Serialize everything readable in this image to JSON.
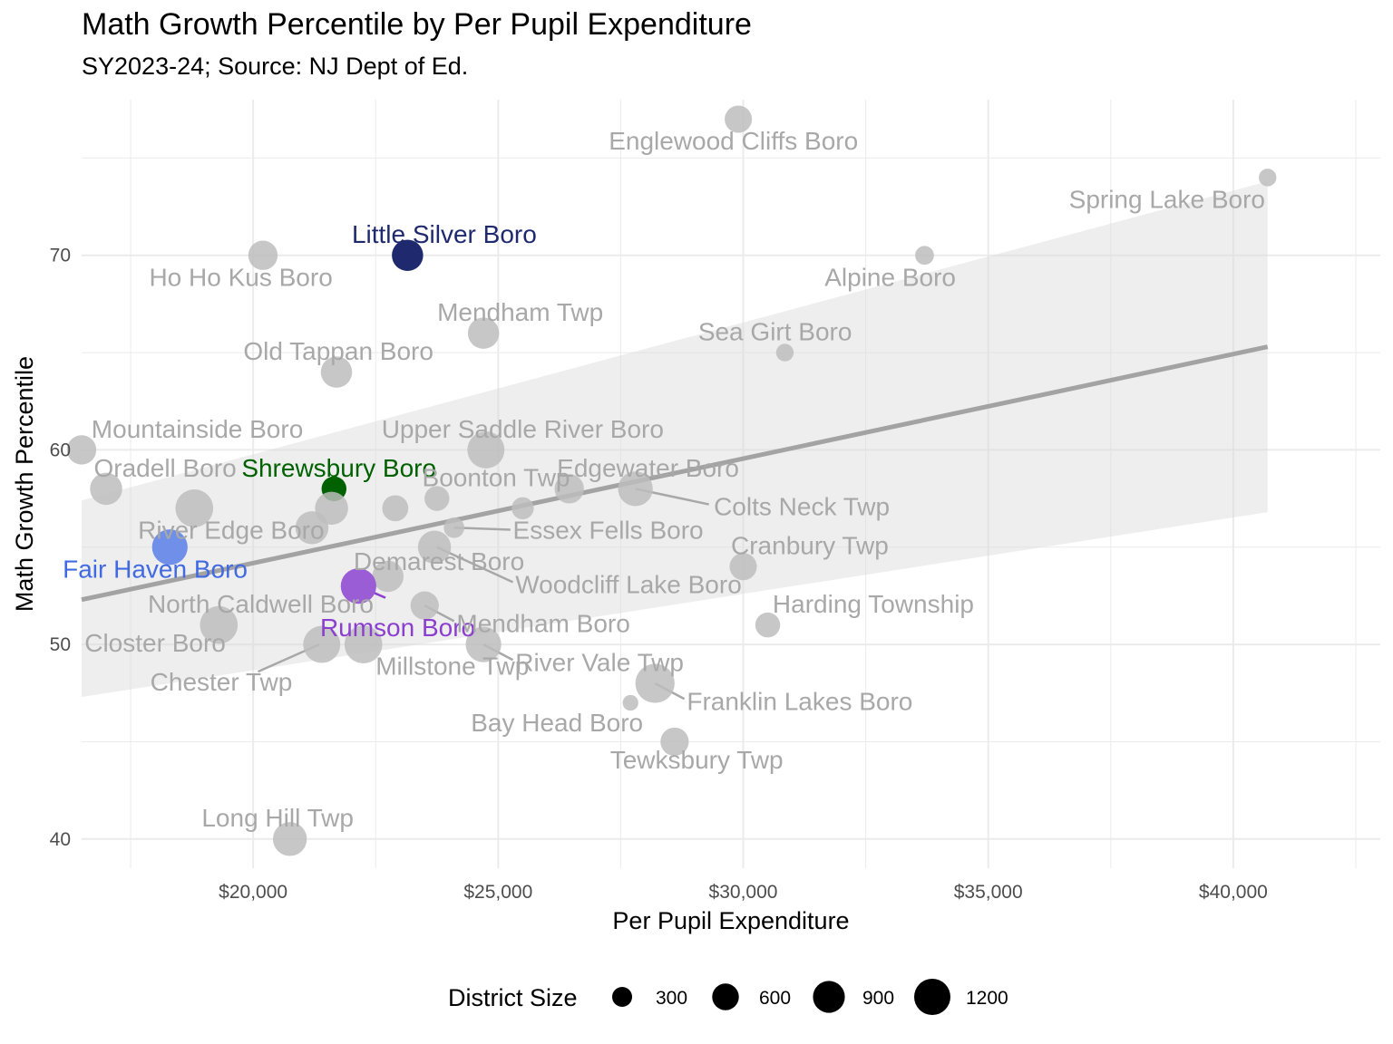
{
  "chart_data": {
    "type": "scatter",
    "title": "Math Growth Percentile by Per Pupil Expenditure",
    "subtitle": "SY2023-24; Source: NJ Dept of Ed.",
    "xlabel": "Per Pupil Expenditure",
    "ylabel": "Math Growth Percentile",
    "xlim": [
      16500,
      43000
    ],
    "ylim": [
      38.5,
      78
    ],
    "x_ticks": [
      20000,
      25000,
      30000,
      35000,
      40000
    ],
    "x_tick_labels": [
      "$20,000",
      "$25,000",
      "$30,000",
      "$35,000",
      "$40,000"
    ],
    "y_ticks": [
      40,
      50,
      60,
      70
    ],
    "y_tick_labels": [
      "40",
      "50",
      "60",
      "70"
    ],
    "grid": true,
    "legend": {
      "title": "District Size",
      "position": "bottom",
      "sizes": [
        300,
        600,
        900,
        1200
      ],
      "labels": [
        "300",
        "600",
        "900",
        "1200"
      ]
    },
    "trend": {
      "type": "linear",
      "x": [
        16500,
        40700
      ],
      "y": [
        52.3,
        65.3
      ],
      "ci_low": [
        47.3,
        56.8
      ],
      "ci_high": [
        57.4,
        73.8
      ]
    },
    "colors": {
      "default": "#a8a8a8",
      "default_fill": "#bdbdbd",
      "Little Silver Boro": "#1f2a6e",
      "Shrewsbury Boro": "#006100",
      "Fair Haven Boro": "#6f8fe8",
      "Rumson Boro": "#9b5dd6",
      "Fair Haven Boro_text": "#4169e1",
      "Rumson Boro_text": "#8a3fcf"
    },
    "points": [
      {
        "x": 29900,
        "y": 77,
        "size": 450,
        "label": "Englewood Cliffs Boro"
      },
      {
        "x": 40700,
        "y": 74,
        "size": 120,
        "label": "Spring Lake Boro"
      },
      {
        "x": 20200,
        "y": 70,
        "size": 550,
        "label": "Ho Ho Kus Boro"
      },
      {
        "x": 23150,
        "y": 70,
        "size": 650,
        "label": "Little Silver Boro",
        "highlight": true
      },
      {
        "x": 33700,
        "y": 70,
        "size": 150,
        "label": "Alpine Boro"
      },
      {
        "x": 24700,
        "y": 66,
        "size": 650,
        "label": "Mendham Twp"
      },
      {
        "x": 30850,
        "y": 65,
        "size": 120,
        "label": "Sea Girt Boro"
      },
      {
        "x": 21700,
        "y": 64,
        "size": 650,
        "label": "Old Tappan Boro"
      },
      {
        "x": 16500,
        "y": 60,
        "size": 550,
        "label": "Mountainside Boro"
      },
      {
        "x": 24750,
        "y": 60,
        "size": 1000,
        "label": "Upper Saddle River Boro"
      },
      {
        "x": 17000,
        "y": 58,
        "size": 700,
        "label": "Oradell Boro"
      },
      {
        "x": 21650,
        "y": 58,
        "size": 350,
        "label": "Shrewsbury Boro",
        "highlight": true
      },
      {
        "x": 23750,
        "y": 57.5,
        "size": 350,
        "label": "Boonton Twp"
      },
      {
        "x": 26450,
        "y": 58,
        "size": 550,
        "label": "Edgewater Boro"
      },
      {
        "x": 27800,
        "y": 58,
        "size": 850,
        "label": "Colts Neck Twp"
      },
      {
        "x": 18800,
        "y": 57,
        "size": 1050,
        "label": ""
      },
      {
        "x": 21600,
        "y": 57,
        "size": 750,
        "label": ""
      },
      {
        "x": 22900,
        "y": 57,
        "size": 400,
        "label": ""
      },
      {
        "x": 25500,
        "y": 57,
        "size": 250,
        "label": ""
      },
      {
        "x": 21200,
        "y": 56,
        "size": 750,
        "label": "River Edge Boro"
      },
      {
        "x": 24100,
        "y": 56,
        "size": 200,
        "label": "Essex Fells Boro"
      },
      {
        "x": 18300,
        "y": 55,
        "size": 900,
        "label": "Fair Haven Boro",
        "highlight": true
      },
      {
        "x": 23700,
        "y": 55,
        "size": 750,
        "label": "Woodcliff Lake Boro"
      },
      {
        "x": 30000,
        "y": 54,
        "size": 450,
        "label": "Cranbury Twp"
      },
      {
        "x": 22750,
        "y": 53.5,
        "size": 650,
        "label": "Demarest Boro"
      },
      {
        "x": 22150,
        "y": 53,
        "size": 900,
        "label": "Rumson Boro",
        "highlight": true
      },
      {
        "x": 23500,
        "y": 52,
        "size": 500,
        "label": "Mendham Boro"
      },
      {
        "x": 30500,
        "y": 51,
        "size": 350,
        "label": "Harding Township"
      },
      {
        "x": 19300,
        "y": 51,
        "size": 1050,
        "label": "North Caldwell Boro"
      },
      {
        "x": 21400,
        "y": 50,
        "size": 1000,
        "label": "Chester Twp"
      },
      {
        "x": 22250,
        "y": 50,
        "size": 1050,
        "label": "Millstone Twp"
      },
      {
        "x": 24700,
        "y": 50,
        "size": 900,
        "label": "River Vale Twp"
      },
      {
        "x": 28200,
        "y": 48,
        "size": 1150,
        "label": "Franklin Lakes Boro"
      },
      {
        "x": 27700,
        "y": 47,
        "size": 80,
        "label": "Bay Head Boro"
      },
      {
        "x": 28600,
        "y": 45,
        "size": 500,
        "label": "Tewksbury Twp"
      },
      {
        "x": 20750,
        "y": 40,
        "size": 800,
        "label": "Long Hill Twp"
      }
    ],
    "labels": [
      {
        "text": "Englewood Cliffs Boro",
        "x": 29800,
        "y": 75.9,
        "anchor": "middle"
      },
      {
        "text": "Spring Lake Boro",
        "x": 40650,
        "y": 72.9,
        "anchor": "end"
      },
      {
        "text": "Ho Ho Kus Boro",
        "x": 19750,
        "y": 68.9,
        "anchor": "middle"
      },
      {
        "text": "Little Silver Boro",
        "x": 23900,
        "y": 71.1,
        "anchor": "middle",
        "point": "Little Silver Boro"
      },
      {
        "text": "Alpine Boro",
        "x": 33000,
        "y": 68.9,
        "anchor": "middle"
      },
      {
        "text": "Mendham Twp",
        "x": 25450,
        "y": 67.1,
        "anchor": "middle"
      },
      {
        "text": "Sea Girt Boro",
        "x": 30650,
        "y": 66.1,
        "anchor": "middle"
      },
      {
        "text": "Old Tappan Boro",
        "x": 19800,
        "y": 65.1,
        "anchor": "start"
      },
      {
        "text": "Mountainside Boro",
        "x": 16700,
        "y": 61.1,
        "anchor": "start"
      },
      {
        "text": "Upper Saddle River Boro",
        "x": 25500,
        "y": 61.1,
        "anchor": "middle"
      },
      {
        "text": "Oradell Boro",
        "x": 16750,
        "y": 59.1,
        "anchor": "start"
      },
      {
        "text": "Shrewsbury Boro",
        "x": 21750,
        "y": 59.1,
        "anchor": "middle",
        "point": "Shrewsbury Boro"
      },
      {
        "text": "Boonton Twp",
        "x": 23450,
        "y": 58.6,
        "anchor": "start"
      },
      {
        "text": "Edgewater Boro",
        "x": 26200,
        "y": 59.1,
        "anchor": "start"
      },
      {
        "text": "Colts Neck Twp",
        "x": 29400,
        "y": 57.1,
        "anchor": "start",
        "leader": [
          27800,
          58,
          29300,
          57.2
        ]
      },
      {
        "text": "River Edge Boro",
        "x": 17650,
        "y": 55.9,
        "anchor": "start"
      },
      {
        "text": "Essex Fells Boro",
        "x": 25300,
        "y": 55.9,
        "anchor": "start",
        "leader": [
          24100,
          56,
          25250,
          55.9
        ]
      },
      {
        "text": "Fair Haven Boro",
        "x": 18000,
        "y": 53.9,
        "anchor": "middle",
        "point": "Fair Haven Boro"
      },
      {
        "text": "Woodcliff Lake Boro",
        "x": 25350,
        "y": 53.1,
        "anchor": "start",
        "leader": [
          23750,
          55,
          25300,
          53.2
        ]
      },
      {
        "text": "Cranbury Twp",
        "x": 29750,
        "y": 55.1,
        "anchor": "start"
      },
      {
        "text": "Demarest Boro",
        "x": 22050,
        "y": 54.3,
        "anchor": "start"
      },
      {
        "text": "Rumson Boro",
        "x": 22950,
        "y": 50.9,
        "anchor": "middle",
        "point": "Rumson Boro",
        "leader": [
          22150,
          53,
          22700,
          52.4
        ]
      },
      {
        "text": "Mendham Boro",
        "x": 24150,
        "y": 51.1,
        "anchor": "start",
        "leader": [
          23500,
          52,
          24100,
          51.2
        ]
      },
      {
        "text": "Harding Township",
        "x": 30600,
        "y": 52.1,
        "anchor": "start"
      },
      {
        "text": "North Caldwell Boro",
        "x": 17850,
        "y": 52.1,
        "anchor": "start"
      },
      {
        "text": "Closter Boro",
        "x": 18000,
        "y": 50.1,
        "anchor": "middle"
      },
      {
        "text": "Chester Twp",
        "x": 19350,
        "y": 48.1,
        "anchor": "middle",
        "leader": [
          21350,
          50,
          20100,
          48.6
        ]
      },
      {
        "text": "Millstone Twp",
        "x": 22500,
        "y": 48.9,
        "anchor": "start"
      },
      {
        "text": "River Vale Twp",
        "x": 25350,
        "y": 49.1,
        "anchor": "start",
        "leader": [
          24700,
          50,
          25300,
          49.2
        ]
      },
      {
        "text": "Franklin Lakes Boro",
        "x": 28850,
        "y": 47.1,
        "anchor": "start",
        "leader": [
          28200,
          48,
          28800,
          47.2
        ]
      },
      {
        "text": "Bay Head Boro",
        "x": 26200,
        "y": 46.0,
        "anchor": "middle"
      },
      {
        "text": "Tewksbury Twp",
        "x": 29050,
        "y": 44.1,
        "anchor": "middle"
      },
      {
        "text": "Long Hill Twp",
        "x": 20500,
        "y": 41.1,
        "anchor": "middle"
      }
    ]
  }
}
